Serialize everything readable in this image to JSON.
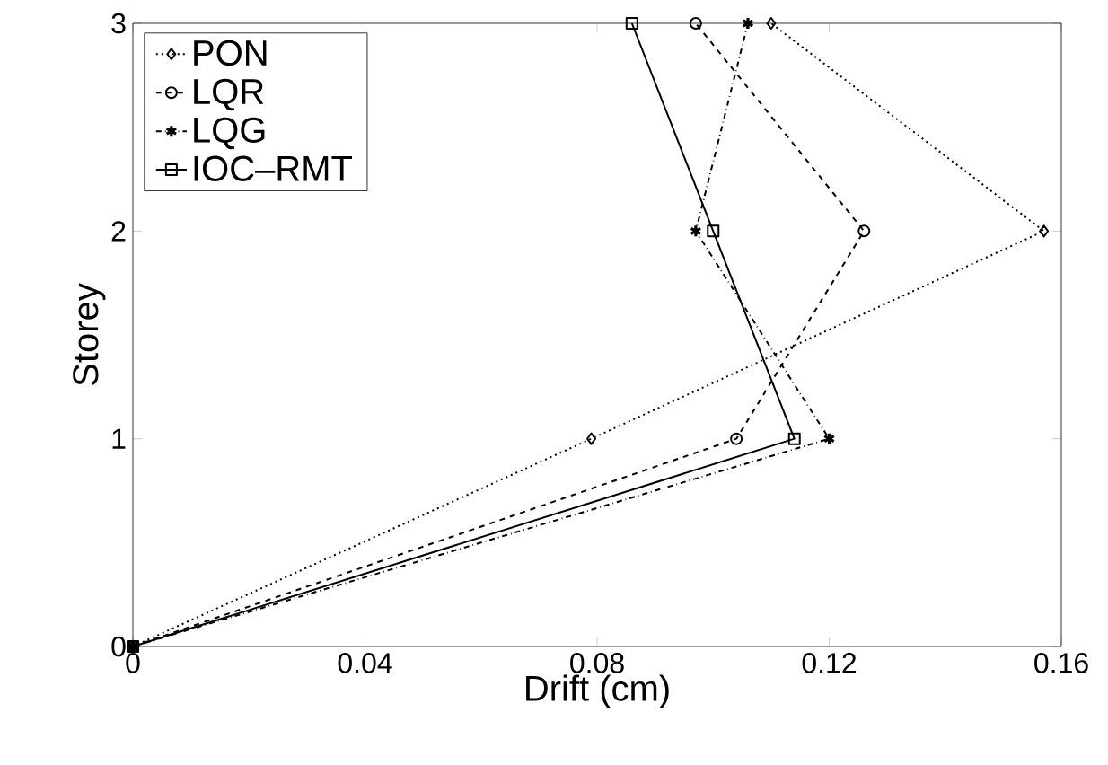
{
  "chart_data": {
    "type": "line",
    "xlabel": "Drift (cm)",
    "ylabel": "Storey",
    "xlim": [
      0,
      0.16
    ],
    "xticks": [
      0,
      0.04,
      0.08,
      0.12,
      0.16
    ],
    "ylim": [
      0,
      3
    ],
    "yticks": [
      0,
      1,
      2,
      3
    ],
    "legend": "top left",
    "series": [
      {
        "name": "PON",
        "color": "#000000",
        "marker": "diamond",
        "line_style": "dotted",
        "x": [
          0,
          0.079,
          0.157,
          0.11
        ],
        "values": [
          0,
          1,
          2,
          3
        ]
      },
      {
        "name": "LQR",
        "color": "#000000",
        "marker": "circle",
        "line_style": "dashed",
        "x": [
          0,
          0.104,
          0.126,
          0.097
        ],
        "values": [
          0,
          1,
          2,
          3
        ]
      },
      {
        "name": "LQG",
        "color": "#000000",
        "marker": "cross",
        "line_style": "dashdot",
        "x": [
          0,
          0.12,
          0.097,
          0.106
        ],
        "values": [
          0,
          1,
          2,
          3
        ]
      },
      {
        "name": "IOC–RMT",
        "color": "#000000",
        "marker": "square",
        "line_style": "solid",
        "x": [
          0,
          0.114,
          0.1,
          0.086
        ],
        "values": [
          0,
          1,
          2,
          3
        ]
      }
    ]
  }
}
